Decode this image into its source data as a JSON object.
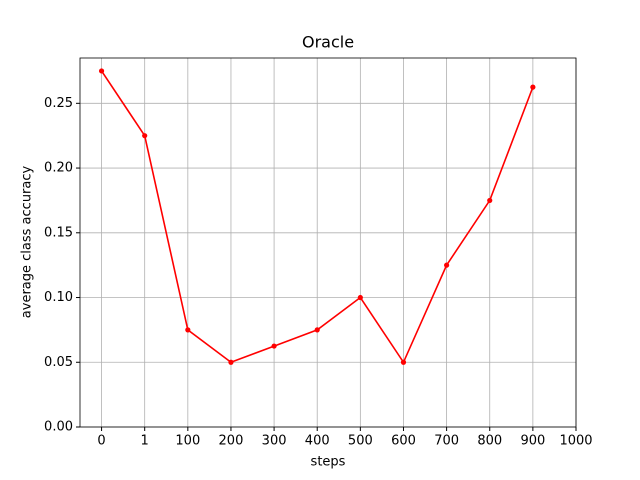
{
  "chart_data": {
    "type": "line",
    "title": "Oracle",
    "x_label": "steps",
    "y_label": "average class accuracy",
    "categories": [
      "0",
      "1",
      "100",
      "200",
      "300",
      "400",
      "500",
      "600",
      "700",
      "800",
      "900",
      "1000"
    ],
    "series": [
      {
        "color": "#ff0000",
        "values": [
          0.275,
          0.225,
          0.075,
          0.05,
          0.0625,
          0.075,
          0.1,
          0.05,
          0.125,
          0.175,
          0.2625,
          null
        ]
      }
    ],
    "ylim": [
      0,
      0.285
    ],
    "yticks": [
      {
        "value": 0,
        "label": "0.00"
      },
      {
        "value": 0.05,
        "label": "0.05"
      },
      {
        "value": 0.1,
        "label": "0.10"
      },
      {
        "value": 0.15,
        "label": "0.15"
      },
      {
        "value": 0.2,
        "label": "0.20"
      },
      {
        "value": 0.25,
        "label": "0.25"
      }
    ],
    "grid": true
  }
}
